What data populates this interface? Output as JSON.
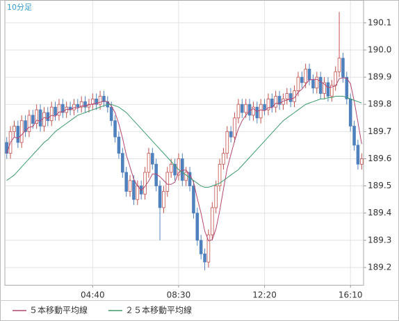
{
  "chart_data": {
    "type": "candlestick",
    "label": "10分足",
    "open": [
      189.66,
      189.62,
      189.7,
      189.72,
      189.66,
      189.74,
      189.7,
      189.76,
      189.73,
      189.78,
      189.72,
      189.77,
      189.74,
      189.79,
      189.76,
      189.8,
      189.77,
      189.79,
      189.78,
      189.8,
      189.79,
      189.81,
      189.79,
      189.8,
      189.82,
      189.8,
      189.83,
      189.81,
      189.79,
      189.74,
      189.68,
      189.62,
      189.55,
      189.48,
      189.52,
      189.45,
      189.5,
      189.47,
      189.55,
      189.62,
      189.58,
      189.5,
      189.42,
      189.48,
      189.55,
      189.58,
      189.54,
      189.6,
      189.52,
      189.55,
      189.5,
      189.4,
      189.3,
      189.25,
      189.22,
      189.32,
      189.42,
      189.5,
      189.58,
      189.62,
      189.7,
      189.68,
      189.75,
      189.8,
      189.77,
      189.8,
      189.76,
      189.79,
      189.75,
      189.8,
      189.78,
      189.82,
      189.79,
      189.83,
      189.8,
      189.82,
      189.84,
      189.81,
      189.85,
      189.9,
      189.88,
      189.93,
      189.89,
      189.86,
      189.9,
      189.84,
      189.88,
      189.83,
      189.87,
      189.92,
      189.97,
      189.9,
      189.82,
      189.72,
      189.65,
      189.58
    ],
    "high": [
      189.68,
      189.72,
      189.74,
      189.74,
      189.76,
      189.76,
      189.78,
      189.78,
      189.8,
      189.8,
      189.79,
      189.79,
      189.81,
      189.81,
      189.82,
      189.82,
      189.81,
      189.81,
      189.82,
      189.82,
      189.83,
      189.83,
      189.82,
      189.84,
      189.84,
      189.85,
      189.85,
      189.83,
      189.81,
      189.76,
      189.7,
      189.64,
      189.57,
      189.54,
      189.54,
      189.52,
      189.52,
      189.57,
      189.64,
      189.64,
      189.6,
      189.52,
      189.5,
      189.57,
      189.6,
      189.6,
      189.62,
      189.62,
      189.57,
      189.57,
      189.52,
      189.42,
      189.32,
      189.27,
      189.34,
      189.44,
      189.52,
      189.6,
      189.64,
      189.72,
      189.72,
      189.77,
      189.82,
      189.82,
      189.82,
      189.82,
      189.81,
      189.81,
      189.82,
      189.82,
      189.84,
      189.84,
      189.85,
      189.85,
      189.84,
      189.86,
      189.86,
      189.87,
      189.92,
      189.92,
      189.95,
      189.95,
      189.91,
      189.92,
      189.92,
      189.9,
      189.9,
      189.89,
      189.94,
      190.14,
      189.99,
      189.92,
      189.84,
      189.74,
      189.67,
      189.62
    ],
    "low": [
      189.6,
      189.6,
      189.68,
      189.64,
      189.64,
      189.68,
      189.68,
      189.71,
      189.71,
      189.7,
      189.7,
      189.72,
      189.72,
      189.74,
      189.74,
      189.75,
      189.75,
      189.76,
      189.76,
      189.77,
      189.77,
      189.77,
      189.77,
      189.78,
      189.78,
      189.78,
      189.79,
      189.77,
      189.72,
      189.66,
      189.6,
      189.53,
      189.46,
      189.46,
      189.43,
      189.43,
      189.45,
      189.45,
      189.53,
      189.56,
      189.48,
      189.3,
      189.4,
      189.46,
      189.53,
      189.52,
      189.52,
      189.5,
      189.5,
      189.48,
      189.38,
      189.28,
      189.23,
      189.19,
      189.2,
      189.3,
      189.4,
      189.48,
      189.56,
      189.6,
      189.66,
      189.66,
      189.73,
      189.75,
      189.75,
      189.74,
      189.74,
      189.73,
      189.73,
      189.76,
      189.76,
      189.77,
      189.77,
      189.78,
      189.78,
      189.8,
      189.79,
      189.79,
      189.83,
      189.86,
      189.86,
      189.87,
      189.84,
      189.84,
      189.82,
      189.82,
      189.81,
      189.81,
      189.85,
      189.9,
      189.88,
      189.8,
      189.7,
      189.63,
      189.56,
      189.56
    ],
    "close": [
      189.62,
      189.7,
      189.72,
      189.66,
      189.74,
      189.7,
      189.76,
      189.73,
      189.78,
      189.72,
      189.77,
      189.74,
      189.79,
      189.76,
      189.8,
      189.77,
      189.79,
      189.78,
      189.8,
      189.79,
      189.81,
      189.79,
      189.8,
      189.82,
      189.8,
      189.83,
      189.81,
      189.79,
      189.74,
      189.68,
      189.62,
      189.55,
      189.48,
      189.52,
      189.45,
      189.5,
      189.47,
      189.55,
      189.62,
      189.58,
      189.5,
      189.42,
      189.48,
      189.55,
      189.58,
      189.54,
      189.6,
      189.52,
      189.55,
      189.5,
      189.4,
      189.3,
      189.25,
      189.22,
      189.32,
      189.42,
      189.5,
      189.58,
      189.62,
      189.7,
      189.68,
      189.75,
      189.8,
      189.77,
      189.8,
      189.76,
      189.79,
      189.75,
      189.8,
      189.78,
      189.82,
      189.79,
      189.83,
      189.8,
      189.82,
      189.84,
      189.81,
      189.85,
      189.9,
      189.88,
      189.93,
      189.89,
      189.86,
      189.9,
      189.84,
      189.88,
      189.83,
      189.87,
      189.92,
      189.97,
      189.9,
      189.82,
      189.72,
      189.65,
      189.58,
      189.6
    ],
    "up_color": "#c0504d",
    "down_color": "#4f81bd",
    "series": [
      {
        "name": "５本移動平均線",
        "color": "#b2456e",
        "values": [
          189.62,
          189.66,
          189.68,
          189.675,
          189.688,
          189.704,
          189.716,
          189.718,
          189.742,
          189.738,
          189.752,
          189.748,
          189.76,
          189.756,
          189.772,
          189.772,
          189.782,
          189.78,
          189.788,
          189.786,
          189.794,
          189.794,
          189.798,
          189.802,
          189.804,
          189.808,
          189.812,
          189.81,
          189.794,
          189.77,
          189.728,
          189.676,
          189.614,
          189.57,
          189.524,
          189.5,
          189.484,
          189.498,
          189.518,
          189.544,
          189.544,
          189.534,
          189.52,
          189.506,
          189.506,
          189.514,
          189.55,
          189.558,
          189.558,
          189.542,
          189.514,
          189.454,
          189.4,
          189.334,
          189.298,
          189.302,
          189.342,
          189.408,
          189.488,
          189.564,
          189.616,
          189.666,
          189.71,
          189.74,
          189.76,
          189.776,
          189.784,
          189.774,
          189.78,
          189.776,
          189.788,
          189.788,
          189.804,
          189.804,
          189.812,
          189.816,
          189.82,
          189.824,
          189.844,
          189.856,
          189.874,
          189.89,
          189.892,
          189.892,
          189.884,
          189.874,
          189.862,
          189.864,
          189.868,
          189.894,
          189.898,
          189.896,
          189.876,
          189.812,
          189.734,
          189.654
        ]
      },
      {
        "name": "２５本移動平均線",
        "color": "#3c9a6c",
        "values": [
          189.52,
          189.53,
          189.54,
          189.555,
          189.57,
          189.585,
          189.6,
          189.615,
          189.63,
          189.645,
          189.66,
          189.67,
          189.685,
          189.7,
          189.71,
          189.72,
          189.73,
          189.74,
          189.75,
          189.76,
          189.765,
          189.77,
          189.775,
          189.78,
          189.785,
          189.79,
          189.795,
          189.8,
          189.8,
          189.795,
          189.79,
          189.78,
          189.77,
          189.755,
          189.74,
          189.725,
          189.71,
          189.695,
          189.68,
          189.665,
          189.65,
          189.635,
          189.62,
          189.605,
          189.59,
          189.575,
          189.56,
          189.55,
          189.54,
          189.53,
          189.52,
          189.51,
          189.5,
          189.495,
          189.495,
          189.5,
          189.505,
          189.51,
          189.52,
          189.53,
          189.54,
          189.55,
          189.56,
          189.575,
          189.59,
          189.605,
          189.62,
          189.635,
          189.65,
          189.665,
          189.68,
          189.695,
          189.71,
          189.725,
          189.74,
          189.75,
          189.76,
          189.77,
          189.78,
          189.79,
          189.8,
          189.805,
          189.81,
          189.815,
          189.82,
          189.82,
          189.825,
          189.825,
          189.83,
          189.83,
          189.83,
          189.825,
          189.82,
          189.815,
          189.81,
          189.805
        ]
      }
    ],
    "xlim": [
      -0.5,
      95.5
    ],
    "xticks": [
      {
        "value": 23,
        "label": "04:40"
      },
      {
        "value": 46,
        "label": "08:30"
      },
      {
        "value": 69,
        "label": "12:20"
      },
      {
        "value": 92,
        "label": "16:10"
      }
    ],
    "ylim": [
      189.136,
      190.184
    ],
    "yticks": [
      189.2,
      189.3,
      189.4,
      189.5,
      189.6,
      189.7,
      189.8,
      189.9,
      {
        "value": 190,
        "label": "190.0"
      },
      190.1
    ],
    "grid": true
  }
}
